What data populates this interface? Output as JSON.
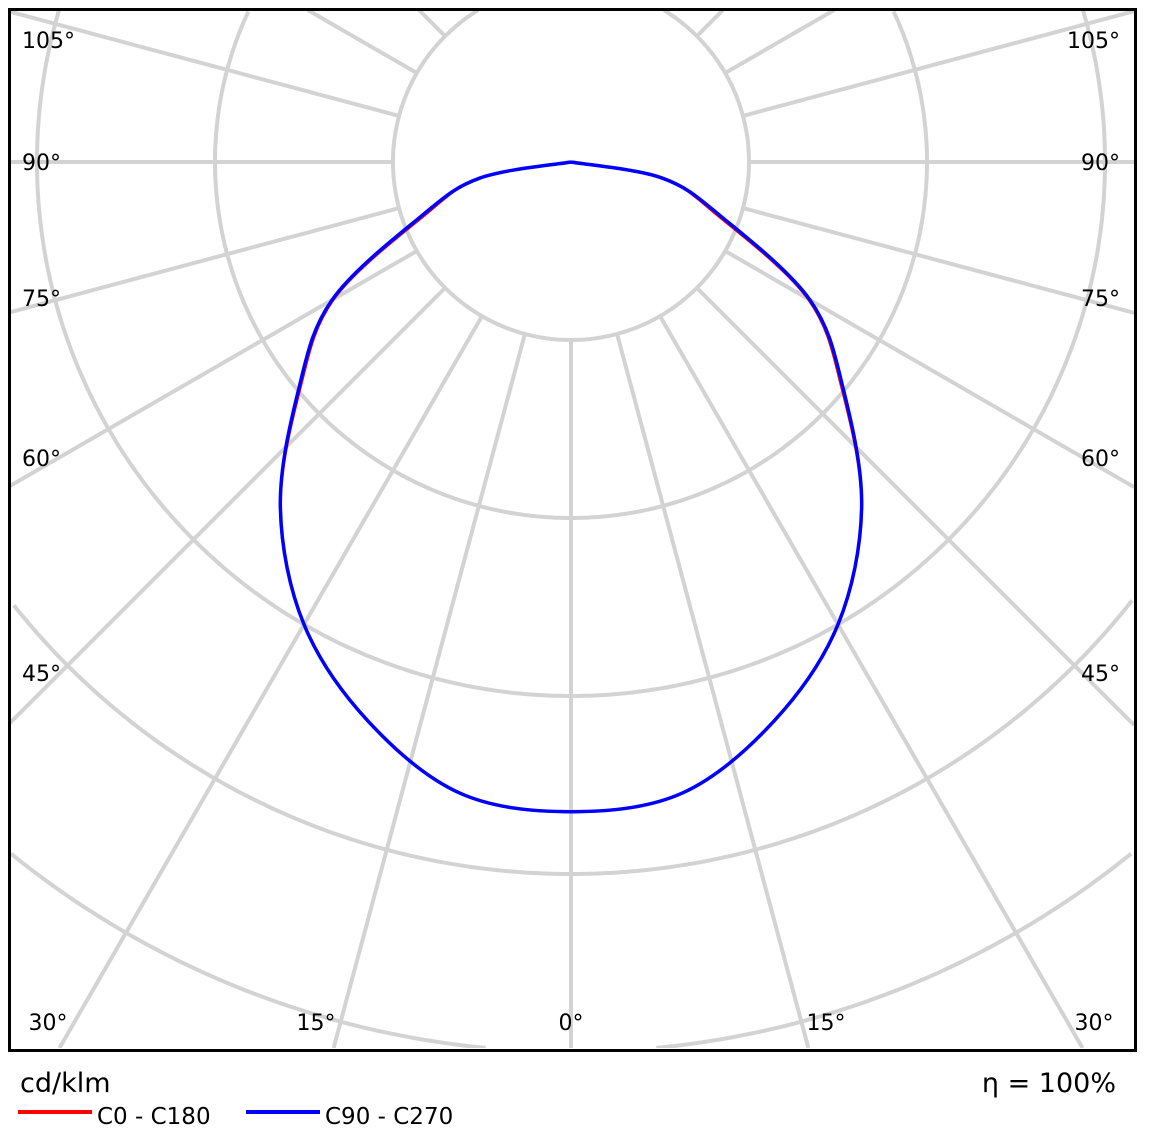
{
  "chart_data": {
    "type": "polar-line",
    "unit_label": "cd/klm",
    "efficiency_label": "η = 100%",
    "angle_tick_labels": {
      "sides": [
        "105°",
        "90°",
        "75°",
        "60°",
        "45°"
      ],
      "bottom": [
        "30°",
        "15°",
        "0°",
        "15°",
        "30°"
      ]
    },
    "angle_range_deg": [
      0,
      180
    ],
    "grid": true,
    "ring_count": 5,
    "legend_position": "bottom-left",
    "angles_deg": [
      0,
      10,
      20,
      30,
      40,
      50,
      60,
      70,
      80,
      90
    ],
    "series": [
      {
        "name": "C0 - C180",
        "color": "#ff0000",
        "values": [
          3.65,
          3.6,
          3.34,
          3.0,
          2.54,
          1.99,
          1.54,
          0.88,
          0.52,
          0
        ]
      },
      {
        "name": "C90 - C270",
        "color": "#0000ff",
        "values": [
          3.65,
          3.6,
          3.34,
          3.0,
          2.54,
          2.0,
          1.55,
          0.9,
          0.52,
          0
        ]
      }
    ]
  }
}
